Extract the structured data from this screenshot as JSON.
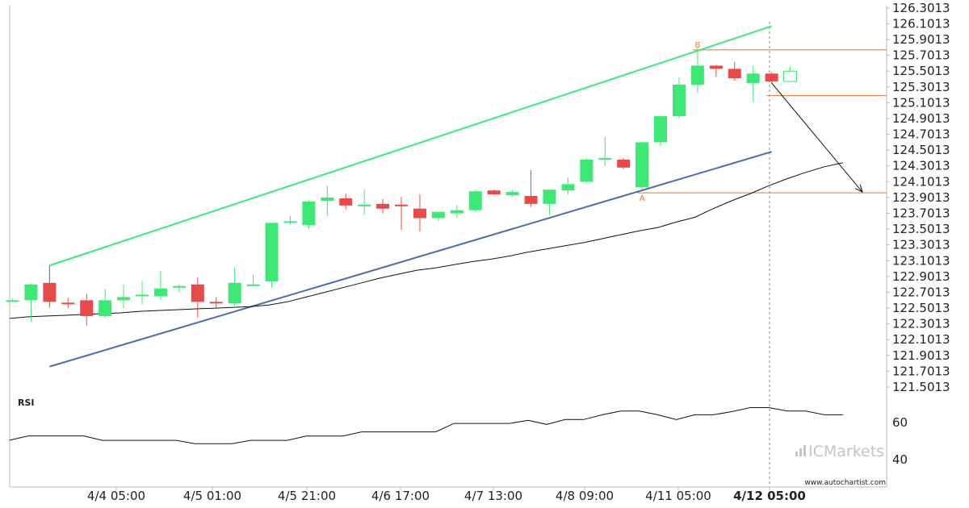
{
  "chart_data": {
    "type": "candlestick",
    "price_axis": {
      "ticks": [
        "126.3013",
        "126.1013",
        "125.9013",
        "125.7013",
        "125.5013",
        "125.3013",
        "125.1013",
        "124.9013",
        "124.7013",
        "124.5013",
        "124.3013",
        "124.1013",
        "123.9013",
        "123.7013",
        "123.5013",
        "123.3013",
        "123.1013",
        "122.9013",
        "122.7013",
        "122.5013",
        "122.3013",
        "122.1013",
        "121.9013",
        "121.7013",
        "121.5013"
      ],
      "range": [
        121.45,
        126.33
      ]
    },
    "time_axis": {
      "labels": [
        {
          "text": "4/4 05:00",
          "bold": false
        },
        {
          "text": "4/5 01:00",
          "bold": false
        },
        {
          "text": "4/5 21:00",
          "bold": false
        },
        {
          "text": "4/6 17:00",
          "bold": false
        },
        {
          "text": "4/7 13:00",
          "bold": false
        },
        {
          "text": "4/8 09:00",
          "bold": false
        },
        {
          "text": "4/11 05:00",
          "bold": false
        },
        {
          "text": "4/12 05:00",
          "bold": true
        }
      ]
    },
    "candles": [
      {
        "o": 122.6,
        "h": 122.62,
        "l": 122.58,
        "c": 122.6
      },
      {
        "o": 122.6,
        "h": 122.82,
        "l": 122.33,
        "c": 122.8
      },
      {
        "o": 122.82,
        "h": 123.04,
        "l": 122.52,
        "c": 122.58
      },
      {
        "o": 122.57,
        "h": 122.63,
        "l": 122.5,
        "c": 122.55
      },
      {
        "o": 122.6,
        "h": 122.68,
        "l": 122.28,
        "c": 122.4
      },
      {
        "o": 122.4,
        "h": 122.74,
        "l": 122.38,
        "c": 122.6
      },
      {
        "o": 122.6,
        "h": 122.8,
        "l": 122.5,
        "c": 122.64
      },
      {
        "o": 122.65,
        "h": 122.85,
        "l": 122.55,
        "c": 122.67
      },
      {
        "o": 122.65,
        "h": 122.97,
        "l": 122.6,
        "c": 122.75
      },
      {
        "o": 122.76,
        "h": 122.8,
        "l": 122.7,
        "c": 122.78
      },
      {
        "o": 122.8,
        "h": 122.89,
        "l": 122.38,
        "c": 122.58
      },
      {
        "o": 122.58,
        "h": 122.64,
        "l": 122.5,
        "c": 122.56
      },
      {
        "o": 122.56,
        "h": 123.02,
        "l": 122.5,
        "c": 122.82
      },
      {
        "o": 122.8,
        "h": 122.92,
        "l": 122.78,
        "c": 122.8
      },
      {
        "o": 122.84,
        "h": 123.58,
        "l": 122.76,
        "c": 123.58
      },
      {
        "o": 123.58,
        "h": 123.67,
        "l": 123.56,
        "c": 123.6
      },
      {
        "o": 123.55,
        "h": 123.87,
        "l": 123.5,
        "c": 123.85
      },
      {
        "o": 123.86,
        "h": 124.05,
        "l": 123.67,
        "c": 123.9
      },
      {
        "o": 123.89,
        "h": 123.95,
        "l": 123.75,
        "c": 123.8
      },
      {
        "o": 123.81,
        "h": 124.0,
        "l": 123.68,
        "c": 123.81
      },
      {
        "o": 123.82,
        "h": 123.88,
        "l": 123.7,
        "c": 123.76
      },
      {
        "o": 123.81,
        "h": 123.91,
        "l": 123.49,
        "c": 123.8
      },
      {
        "o": 123.76,
        "h": 123.94,
        "l": 123.47,
        "c": 123.64
      },
      {
        "o": 123.64,
        "h": 123.72,
        "l": 123.6,
        "c": 123.72
      },
      {
        "o": 123.7,
        "h": 123.8,
        "l": 123.64,
        "c": 123.74
      },
      {
        "o": 123.74,
        "h": 124.0,
        "l": 123.72,
        "c": 123.98
      },
      {
        "o": 123.99,
        "h": 124.0,
        "l": 123.93,
        "c": 123.94
      },
      {
        "o": 123.93,
        "h": 124.0,
        "l": 123.91,
        "c": 123.97
      },
      {
        "o": 123.92,
        "h": 124.25,
        "l": 123.78,
        "c": 123.82
      },
      {
        "o": 123.82,
        "h": 124.0,
        "l": 123.68,
        "c": 124.0
      },
      {
        "o": 123.99,
        "h": 124.15,
        "l": 123.94,
        "c": 124.07
      },
      {
        "o": 124.1,
        "h": 124.4,
        "l": 124.08,
        "c": 124.38
      },
      {
        "o": 124.4,
        "h": 124.67,
        "l": 124.3,
        "c": 124.4
      },
      {
        "o": 124.38,
        "h": 124.4,
        "l": 124.26,
        "c": 124.28
      },
      {
        "o": 124.03,
        "h": 124.61,
        "l": 124.0,
        "c": 124.6
      },
      {
        "o": 124.6,
        "h": 124.94,
        "l": 124.55,
        "c": 124.93
      },
      {
        "o": 124.93,
        "h": 125.42,
        "l": 124.9,
        "c": 125.33
      },
      {
        "o": 125.33,
        "h": 125.8,
        "l": 125.22,
        "c": 125.57
      },
      {
        "o": 125.57,
        "h": 125.58,
        "l": 125.43,
        "c": 125.53
      },
      {
        "o": 125.53,
        "h": 125.62,
        "l": 125.38,
        "c": 125.41
      },
      {
        "o": 125.35,
        "h": 125.57,
        "l": 125.12,
        "c": 125.47
      },
      {
        "o": 125.47,
        "h": 125.49,
        "l": 125.34,
        "c": 125.37
      },
      {
        "o": 125.37,
        "h": 125.56,
        "l": 125.37,
        "c": 125.5
      }
    ],
    "moving_average": [
      122.37,
      122.39,
      122.4,
      122.41,
      122.42,
      122.43,
      122.44,
      122.46,
      122.47,
      122.48,
      122.49,
      122.5,
      122.51,
      122.52,
      122.54,
      122.58,
      122.64,
      122.7,
      122.76,
      122.82,
      122.88,
      122.93,
      122.98,
      123.01,
      123.05,
      123.09,
      123.12,
      123.16,
      123.21,
      123.25,
      123.29,
      123.33,
      123.38,
      123.43,
      123.48,
      123.52,
      123.59,
      123.65,
      123.76,
      123.86,
      123.95,
      124.05,
      124.14,
      124.22,
      124.29,
      124.34
    ],
    "channel_upper": {
      "from": [
        2,
        123.04
      ],
      "to": [
        41,
        126.07
      ]
    },
    "channel_lower": {
      "from": [
        2,
        121.76
      ],
      "to": [
        41,
        124.48
      ]
    },
    "levels": [
      {
        "name": "B",
        "value": 125.77,
        "start": 37
      },
      {
        "name": "resistance-low",
        "value": 125.19,
        "start": 41
      },
      {
        "name": "A",
        "value": 123.96,
        "start": 34
      }
    ],
    "forecast_arrow": {
      "from": [
        41,
        125.35
      ],
      "to": [
        46,
        123.97
      ]
    },
    "rsi": {
      "title": "RSI",
      "ticks": [
        "60",
        "40"
      ],
      "range": [
        25,
        75
      ],
      "values": [
        50.5,
        52.8,
        52.8,
        52.8,
        52.8,
        50.4,
        50.4,
        50.4,
        50.4,
        50.4,
        48.6,
        48.6,
        48.6,
        50.4,
        50.4,
        50.4,
        52.7,
        52.7,
        52.7,
        55.0,
        55.0,
        55.0,
        55.0,
        55.0,
        59.6,
        59.6,
        59.6,
        59.6,
        61.3,
        59.1,
        61.7,
        61.7,
        64.3,
        66.3,
        66.3,
        64.3,
        61.7,
        64.3,
        64.3,
        66.0,
        68.2,
        68.2,
        66.3,
        66.3,
        64.3,
        64.3
      ]
    },
    "brand": "ICMarkets",
    "website": "www.autochartist.com",
    "colors": {
      "bull": "#3ee876",
      "bear": "#e64a4a",
      "upper_channel": "#3ee876",
      "lower_channel": "#4a6fa5",
      "level": "#e8792e",
      "grid": "#dcdcdc"
    }
  }
}
